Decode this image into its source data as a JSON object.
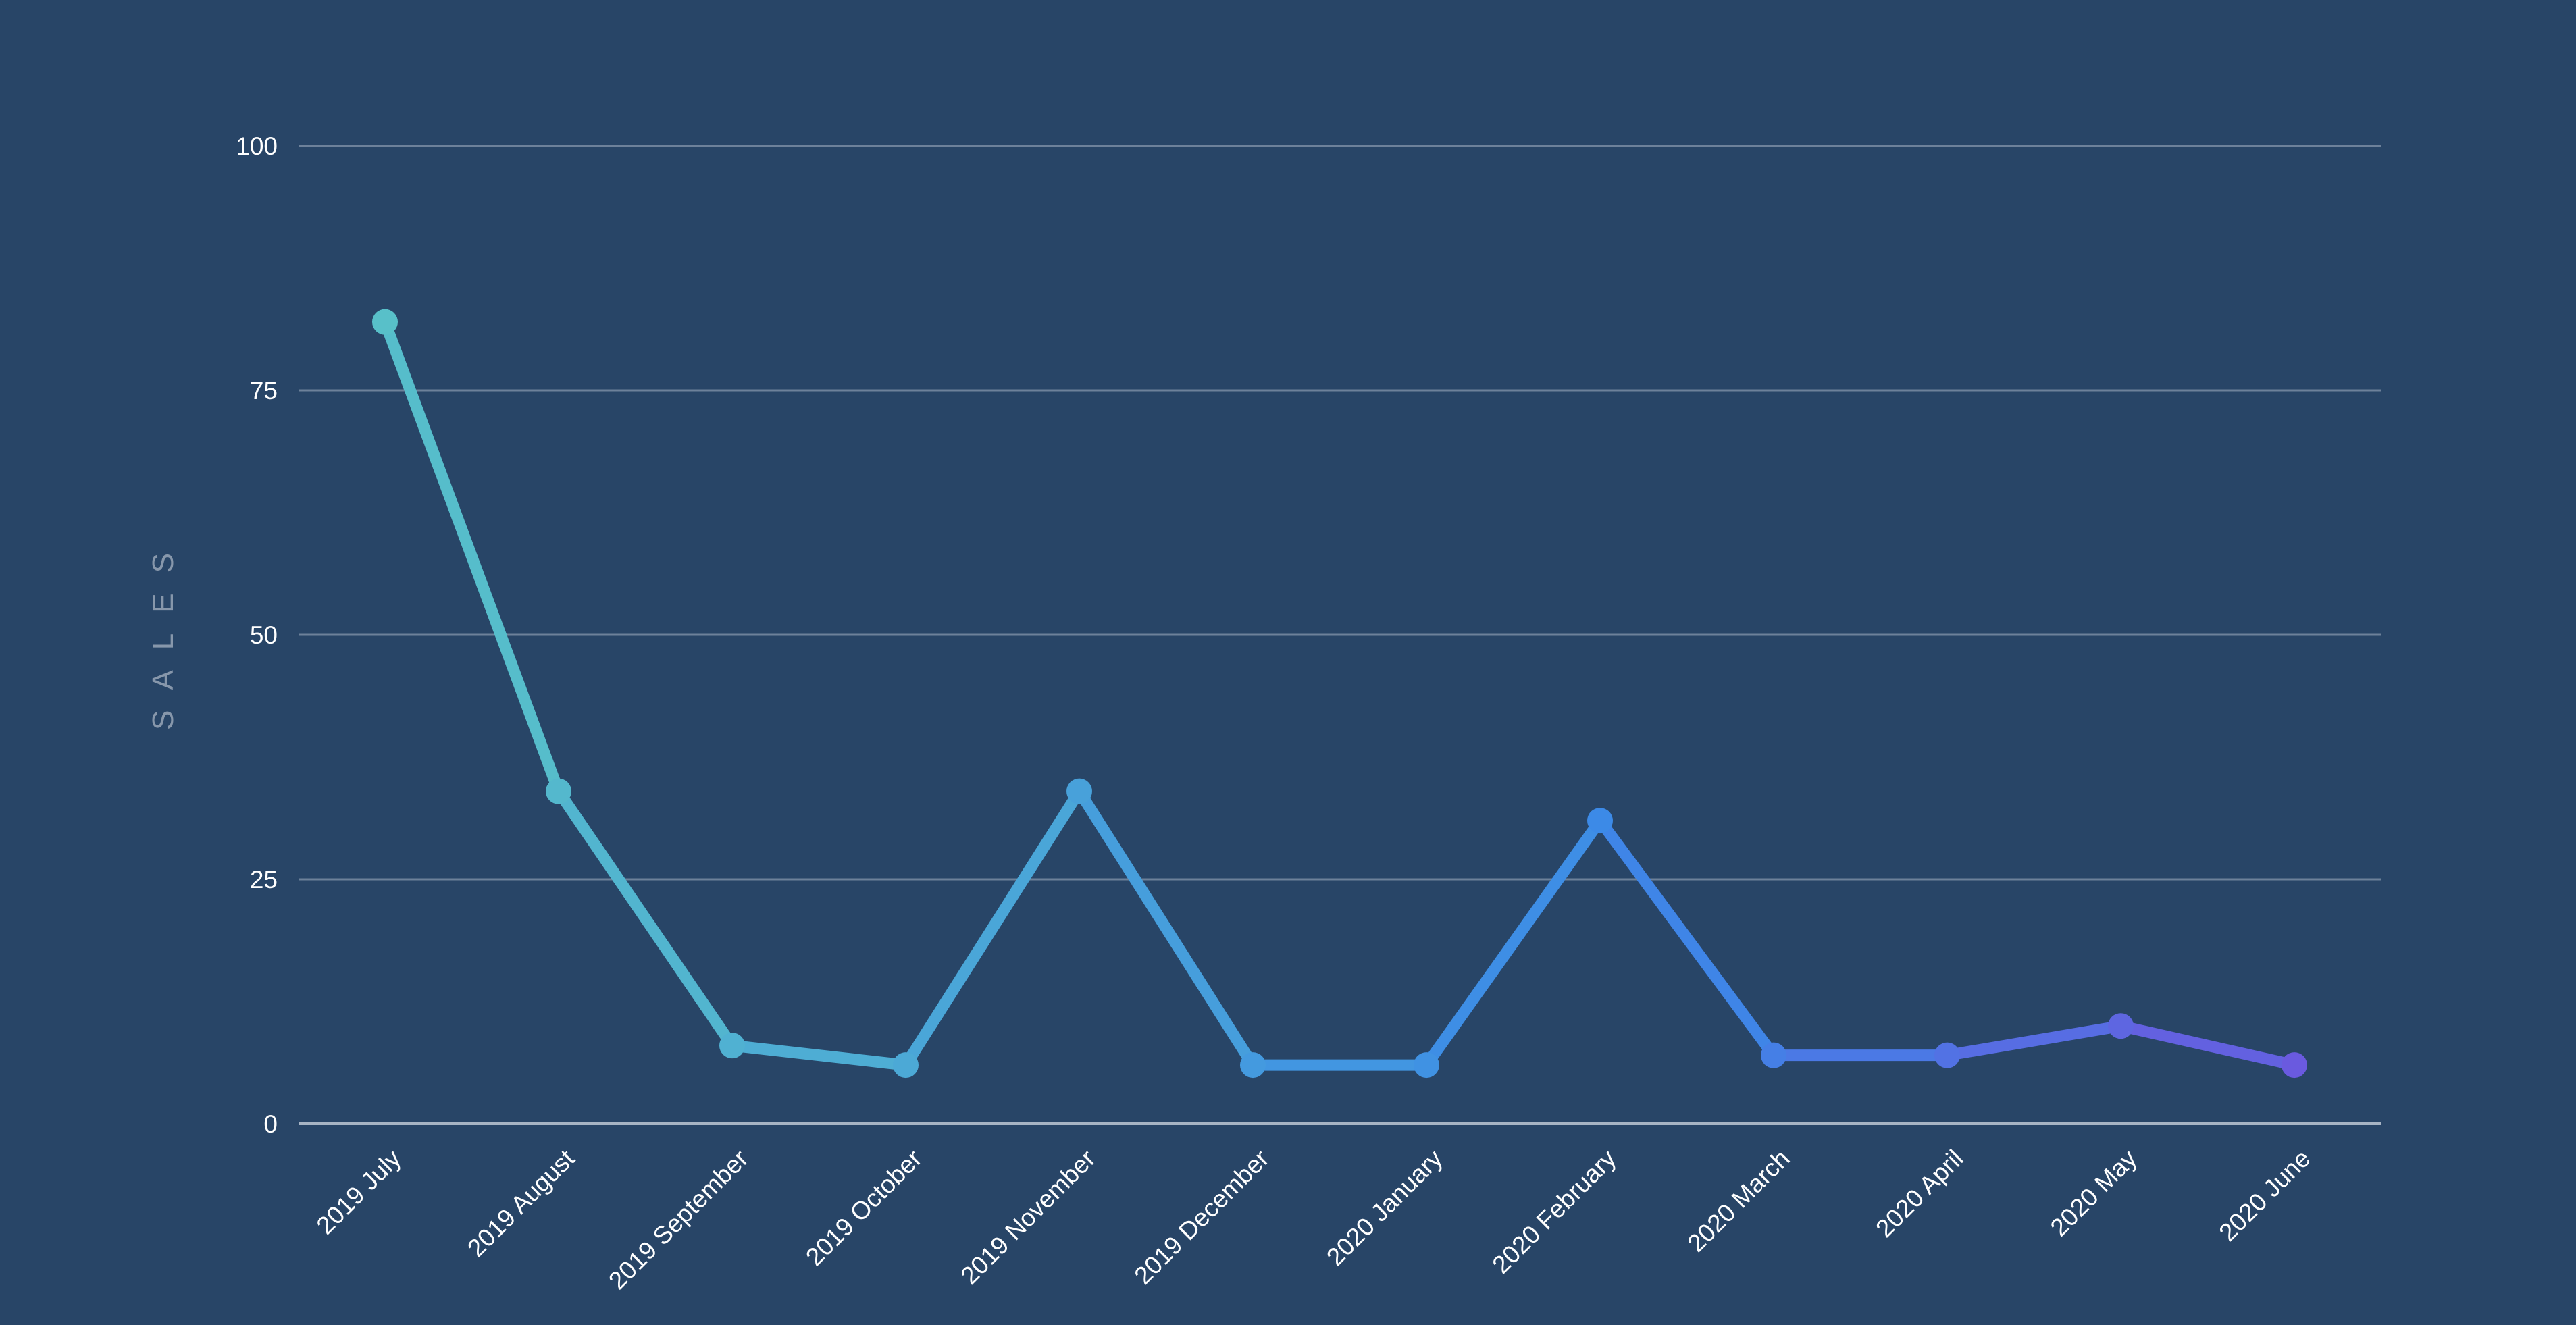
{
  "chart_data": {
    "type": "line",
    "categories": [
      "2019 July",
      "2019 August",
      "2019 September",
      "2019 October",
      "2019 November",
      "2019 December",
      "2020 January",
      "2020 February",
      "2020 March",
      "2020 April",
      "2020 May",
      "2020 June"
    ],
    "series": [
      {
        "values": [
          82,
          34,
          8,
          6,
          34,
          6,
          6,
          31,
          7,
          7,
          10,
          6
        ]
      }
    ],
    "ylabel": "SALES",
    "xlabel": "",
    "ylim": [
      0,
      100
    ],
    "yticks": [
      "0",
      "25",
      "50",
      "75",
      "100"
    ],
    "grid": true,
    "legend": "none",
    "colors": {
      "background": "#284567",
      "gradient_start": "#58C0C9",
      "gradient_mid": "#3B89E8",
      "gradient_end": "#6A5ADF",
      "grid": "#6D819A",
      "axis_title": "#8797AB",
      "text": "#FFFFFF"
    }
  }
}
